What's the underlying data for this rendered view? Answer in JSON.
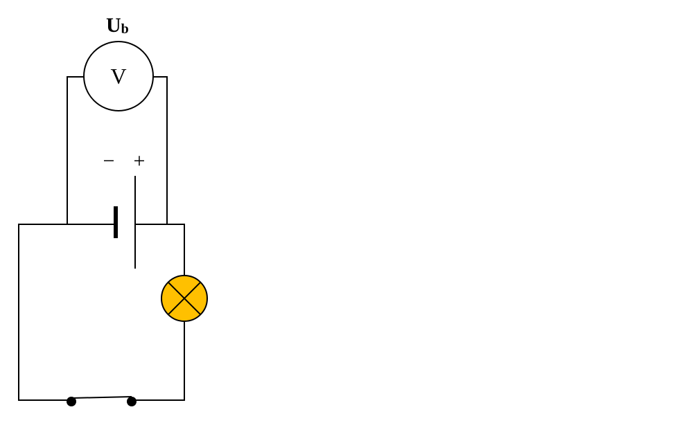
{
  "diagram": {
    "title_main": "U",
    "title_sub": "b",
    "voltmeter_symbol": "V",
    "minus_sign": "−",
    "plus_sign": "+"
  },
  "colors": {
    "lamp_fill": "#FFC000",
    "line": "#000000",
    "background": "#FFFFFF"
  },
  "components": {
    "voltmeter": "voltmeter",
    "battery": "battery-cell",
    "lamp": "lamp",
    "switch": "open-switch"
  }
}
